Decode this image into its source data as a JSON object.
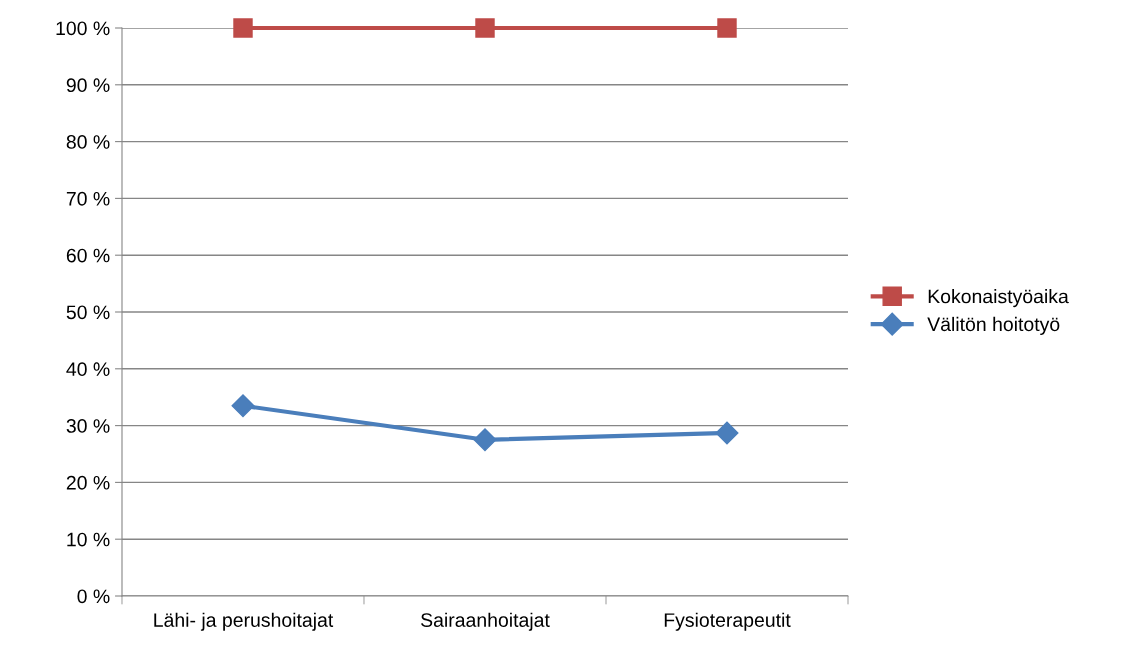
{
  "chart_data": {
    "type": "line",
    "categories": [
      "Lähi- ja perushoitajat",
      "Sairaanhoitajat",
      "Fysioterapeutit"
    ],
    "series": [
      {
        "name": "Kokonaistyöaika",
        "color": "#be4b48",
        "marker": "square",
        "values": [
          100,
          100,
          100
        ]
      },
      {
        "name": "Välitön hoitotyö",
        "color": "#4a7ebb",
        "marker": "diamond",
        "values": [
          33.5,
          27.5,
          28.7
        ]
      }
    ],
    "ylim": [
      0,
      100
    ],
    "yticks": [
      {
        "value": 0,
        "label": "0 %"
      },
      {
        "value": 10,
        "label": "10 %"
      },
      {
        "value": 20,
        "label": "20 %"
      },
      {
        "value": 30,
        "label": "30 %"
      },
      {
        "value": 40,
        "label": "40 %"
      },
      {
        "value": 50,
        "label": "50 %"
      },
      {
        "value": 60,
        "label": "60 %"
      },
      {
        "value": 70,
        "label": "70 %"
      },
      {
        "value": 80,
        "label": "80 %"
      },
      {
        "value": 90,
        "label": "90 %"
      },
      {
        "value": 100,
        "label": "100 %"
      }
    ],
    "grid": "y",
    "legend": "right",
    "line_style": "solid"
  }
}
